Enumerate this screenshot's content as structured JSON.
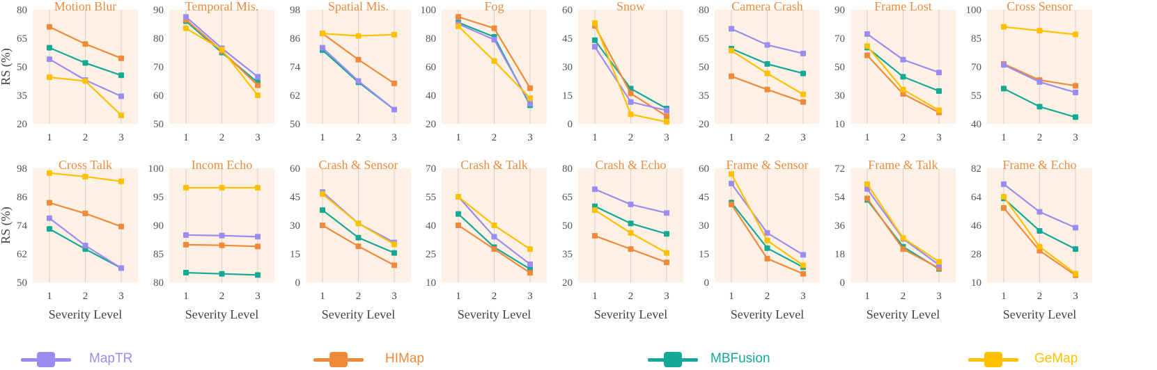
{
  "figure": {
    "y_axis_label": "RS (%)",
    "x_axis_label": "Severity Level"
  },
  "series": [
    {
      "name": "MapTR",
      "color": "#9B8CF2"
    },
    {
      "name": "HIMap",
      "color": "#F08A3B"
    },
    {
      "name": "MBFusion",
      "color": "#14A896"
    },
    {
      "name": "GeMap",
      "color": "#FFC000"
    }
  ],
  "chart_data": [
    {
      "type": "line",
      "title": "Motion Blur",
      "x": [
        1,
        2,
        3
      ],
      "ylim": [
        20,
        80
      ],
      "yticks": [
        20,
        35,
        50,
        65,
        80
      ],
      "series": [
        {
          "name": "MapTR",
          "values": [
            54,
            43,
            34.5
          ]
        },
        {
          "name": "HIMap",
          "values": [
            71,
            62,
            54.5
          ]
        },
        {
          "name": "MBFusion",
          "values": [
            60,
            52,
            45.5
          ]
        },
        {
          "name": "GeMap",
          "values": [
            44.5,
            42.5,
            24.5
          ]
        }
      ]
    },
    {
      "type": "line",
      "title": "Temporal Mis.",
      "x": [
        1,
        2,
        3
      ],
      "ylim": [
        50,
        90
      ],
      "yticks": [
        50,
        60,
        70,
        80,
        90
      ],
      "series": [
        {
          "name": "MapTR",
          "values": [
            87.5,
            76.5,
            66.5
          ]
        },
        {
          "name": "HIMap",
          "values": [
            86.5,
            75.5,
            63.5
          ]
        },
        {
          "name": "MBFusion",
          "values": [
            86,
            75,
            64.5
          ]
        },
        {
          "name": "GeMap",
          "values": [
            83.5,
            76,
            60
          ]
        }
      ]
    },
    {
      "type": "line",
      "title": "Spatial Mis.",
      "x": [
        1,
        2,
        3
      ],
      "ylim": [
        50,
        98
      ],
      "yticks": [
        50,
        62,
        74,
        86,
        98
      ],
      "series": [
        {
          "name": "MapTR",
          "values": [
            82,
            68,
            56
          ]
        },
        {
          "name": "HIMap",
          "values": [
            88,
            77,
            67
          ]
        },
        {
          "name": "MBFusion",
          "values": [
            81,
            67.5,
            56
          ]
        },
        {
          "name": "GeMap",
          "values": [
            88,
            87,
            87.5
          ]
        }
      ]
    },
    {
      "type": "line",
      "title": "Fog",
      "x": [
        1,
        2,
        3
      ],
      "ylim": [
        20,
        100
      ],
      "yticks": [
        20,
        40,
        60,
        80,
        100
      ],
      "series": [
        {
          "name": "MapTR",
          "values": [
            90,
            79,
            34
          ]
        },
        {
          "name": "HIMap",
          "values": [
            95,
            87,
            45
          ]
        },
        {
          "name": "MBFusion",
          "values": [
            91,
            81,
            33
          ]
        },
        {
          "name": "GeMap",
          "values": [
            88.5,
            64,
            38
          ]
        }
      ]
    },
    {
      "type": "line",
      "title": "Snow",
      "x": [
        1,
        2,
        3
      ],
      "ylim": [
        0,
        60
      ],
      "yticks": [
        0,
        15,
        30,
        45,
        60
      ],
      "series": [
        {
          "name": "MapTR",
          "values": [
            40.5,
            11.5,
            7
          ]
        },
        {
          "name": "HIMap",
          "values": [
            51.5,
            16,
            4
          ]
        },
        {
          "name": "MBFusion",
          "values": [
            44,
            18.5,
            8
          ]
        },
        {
          "name": "GeMap",
          "values": [
            53,
            5,
            1
          ]
        }
      ]
    },
    {
      "type": "line",
      "title": "Camera Crash",
      "x": [
        1,
        2,
        3
      ],
      "ylim": [
        20,
        80
      ],
      "yticks": [
        20,
        35,
        50,
        65,
        80
      ],
      "series": [
        {
          "name": "MapTR",
          "values": [
            70,
            61.5,
            57
          ]
        },
        {
          "name": "HIMap",
          "values": [
            45,
            38,
            31.5
          ]
        },
        {
          "name": "MBFusion",
          "values": [
            59.5,
            51.5,
            46.5
          ]
        },
        {
          "name": "GeMap",
          "values": [
            58.5,
            46.5,
            35.5
          ]
        }
      ]
    },
    {
      "type": "line",
      "title": "Frame Lost",
      "x": [
        1,
        2,
        3
      ],
      "ylim": [
        10,
        90
      ],
      "yticks": [
        10,
        30,
        50,
        70,
        90
      ],
      "series": [
        {
          "name": "MapTR",
          "values": [
            73,
            55,
            46
          ]
        },
        {
          "name": "HIMap",
          "values": [
            58,
            31,
            18
          ]
        },
        {
          "name": "MBFusion",
          "values": [
            63.5,
            43,
            33
          ]
        },
        {
          "name": "GeMap",
          "values": [
            64.5,
            34,
            19.5
          ]
        }
      ]
    },
    {
      "type": "line",
      "title": "Cross Sensor",
      "x": [
        1,
        2,
        3
      ],
      "ylim": [
        40,
        100
      ],
      "yticks": [
        40,
        55,
        70,
        85,
        100
      ],
      "series": [
        {
          "name": "MapTR",
          "values": [
            71,
            62,
            56.5
          ]
        },
        {
          "name": "HIMap",
          "values": [
            71.5,
            63,
            60
          ]
        },
        {
          "name": "MBFusion",
          "values": [
            58.5,
            49,
            43.5
          ]
        },
        {
          "name": "GeMap",
          "values": [
            91,
            89,
            87
          ]
        }
      ]
    },
    {
      "type": "line",
      "title": "Cross Talk",
      "x": [
        1,
        2,
        3
      ],
      "ylim": [
        50,
        98
      ],
      "yticks": [
        50,
        62,
        74,
        86,
        98
      ],
      "series": [
        {
          "name": "MapTR",
          "values": [
            77,
            65.5,
            56
          ]
        },
        {
          "name": "HIMap",
          "values": [
            83.5,
            79,
            73.5
          ]
        },
        {
          "name": "MBFusion",
          "values": [
            72.5,
            64,
            56
          ]
        },
        {
          "name": "GeMap",
          "values": [
            96,
            94.5,
            92.5
          ]
        }
      ]
    },
    {
      "type": "line",
      "title": "Incom Echo",
      "x": [
        1,
        2,
        3
      ],
      "ylim": [
        80,
        100
      ],
      "yticks": [
        80,
        85,
        90,
        95,
        100
      ],
      "series": [
        {
          "name": "MapTR",
          "values": [
            88.3,
            88.2,
            88
          ]
        },
        {
          "name": "HIMap",
          "values": [
            86.6,
            86.5,
            86.3
          ]
        },
        {
          "name": "MBFusion",
          "values": [
            81.7,
            81.5,
            81.3
          ]
        },
        {
          "name": "GeMap",
          "values": [
            96.6,
            96.6,
            96.6
          ]
        }
      ]
    },
    {
      "type": "line",
      "title": "Crash & Sensor",
      "x": [
        1,
        2,
        3
      ],
      "ylim": [
        0,
        60
      ],
      "yticks": [
        0,
        15,
        30,
        45,
        60
      ],
      "series": [
        {
          "name": "MapTR",
          "values": [
            47.5,
            31,
            21
          ]
        },
        {
          "name": "HIMap",
          "values": [
            30,
            19,
            9
          ]
        },
        {
          "name": "MBFusion",
          "values": [
            38,
            23.5,
            15.5
          ]
        },
        {
          "name": "GeMap",
          "values": [
            46.5,
            31,
            20
          ]
        }
      ]
    },
    {
      "type": "line",
      "title": "Crash & Talk",
      "x": [
        1,
        2,
        3
      ],
      "ylim": [
        10,
        70
      ],
      "yticks": [
        10,
        25,
        40,
        55,
        70
      ],
      "series": [
        {
          "name": "MapTR",
          "values": [
            55,
            34,
            19.5
          ]
        },
        {
          "name": "HIMap",
          "values": [
            40,
            27.5,
            15
          ]
        },
        {
          "name": "MBFusion",
          "values": [
            46,
            28.5,
            17
          ]
        },
        {
          "name": "GeMap",
          "values": [
            55,
            40,
            27.5
          ]
        }
      ]
    },
    {
      "type": "line",
      "title": "Crash & Echo",
      "x": [
        1,
        2,
        3
      ],
      "ylim": [
        20,
        80
      ],
      "yticks": [
        20,
        35,
        50,
        65,
        80
      ],
      "series": [
        {
          "name": "MapTR",
          "values": [
            69,
            61,
            56.5
          ]
        },
        {
          "name": "HIMap",
          "values": [
            44.5,
            37.5,
            30.5
          ]
        },
        {
          "name": "MBFusion",
          "values": [
            60,
            51,
            45.5
          ]
        },
        {
          "name": "GeMap",
          "values": [
            58,
            46,
            35.5
          ]
        }
      ]
    },
    {
      "type": "line",
      "title": "Frame & Sensor",
      "x": [
        1,
        2,
        3
      ],
      "ylim": [
        0,
        60
      ],
      "yticks": [
        0,
        15,
        30,
        45,
        60
      ],
      "series": [
        {
          "name": "MapTR",
          "values": [
            52,
            26,
            14.5
          ]
        },
        {
          "name": "HIMap",
          "values": [
            41,
            12.5,
            4.5
          ]
        },
        {
          "name": "MBFusion",
          "values": [
            42,
            18,
            8
          ]
        },
        {
          "name": "GeMap",
          "values": [
            57,
            22,
            9
          ]
        }
      ]
    },
    {
      "type": "line",
      "title": "Frame & Talk",
      "x": [
        1,
        2,
        3
      ],
      "ylim": [
        0,
        72
      ],
      "yticks": [
        0,
        18,
        36,
        54,
        72
      ],
      "series": [
        {
          "name": "MapTR",
          "values": [
            59,
            27.5,
            11
          ]
        },
        {
          "name": "HIMap",
          "values": [
            53,
            21,
            9
          ]
        },
        {
          "name": "MBFusion",
          "values": [
            52,
            22.5,
            8.5
          ]
        },
        {
          "name": "GeMap",
          "values": [
            62,
            28,
            13
          ]
        }
      ]
    },
    {
      "type": "line",
      "title": "Frame & Echo",
      "x": [
        1,
        2,
        3
      ],
      "ylim": [
        10,
        82
      ],
      "yticks": [
        10,
        28,
        46,
        64,
        82
      ],
      "series": [
        {
          "name": "MapTR",
          "values": [
            72,
            54.5,
            44.5
          ]
        },
        {
          "name": "HIMap",
          "values": [
            57,
            30,
            14.5
          ]
        },
        {
          "name": "MBFusion",
          "values": [
            63,
            42.5,
            31
          ]
        },
        {
          "name": "GeMap",
          "values": [
            64,
            32.5,
            15.5
          ]
        }
      ]
    }
  ]
}
